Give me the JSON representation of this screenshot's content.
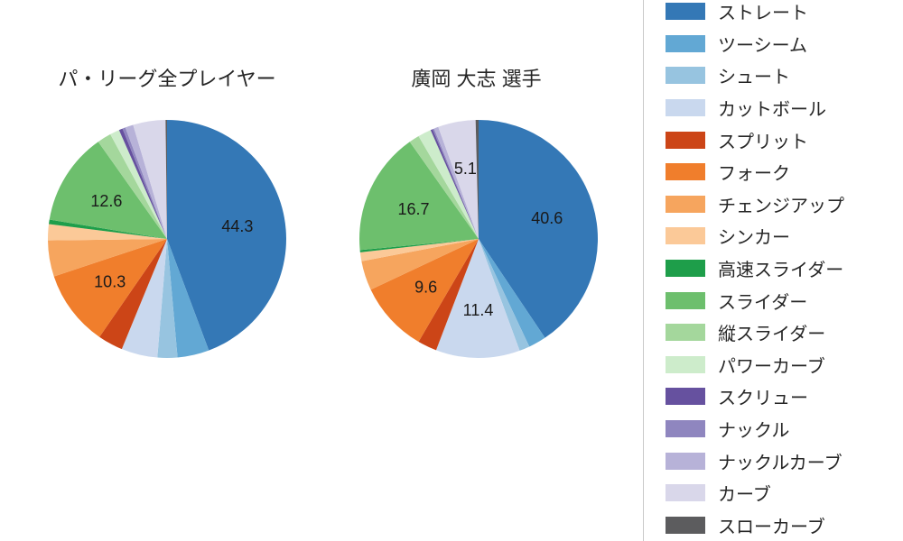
{
  "page": {
    "background": "#ffffff",
    "text_color": "#262626"
  },
  "titles": {
    "left": "パ・リーグ全プレイヤー",
    "right": "廣岡 大志 選手"
  },
  "legend": {
    "position": "right",
    "items": [
      {
        "label": "ストレート",
        "color": "#3478b6"
      },
      {
        "label": "ツーシーム",
        "color": "#62a8d4"
      },
      {
        "label": "シュート",
        "color": "#97c4e0"
      },
      {
        "label": "カットボール",
        "color": "#c9d8ee"
      },
      {
        "label": "スプリット",
        "color": "#cc4517"
      },
      {
        "label": "フォーク",
        "color": "#f07e2c"
      },
      {
        "label": "チェンジアップ",
        "color": "#f6a55e"
      },
      {
        "label": "シンカー",
        "color": "#fbc998"
      },
      {
        "label": "高速スライダー",
        "color": "#1e9e4a"
      },
      {
        "label": "スライダー",
        "color": "#6dbf6d"
      },
      {
        "label": "縦スライダー",
        "color": "#a4d79c"
      },
      {
        "label": "パワーカーブ",
        "color": "#cdeccb"
      },
      {
        "label": "スクリュー",
        "color": "#66519f"
      },
      {
        "label": "ナックル",
        "color": "#8f86bf"
      },
      {
        "label": "ナックルカーブ",
        "color": "#b7b2d8"
      },
      {
        "label": "カーブ",
        "color": "#d9d7ea"
      },
      {
        "label": "スローカーブ",
        "color": "#5c5c5e"
      }
    ]
  },
  "chart_data": [
    {
      "type": "pie",
      "id": "league",
      "title": "パ・リーグ全プレイヤー",
      "start_angle_deg": 90,
      "direction": "clockwise",
      "unit": "percent",
      "label_min_pct": 5,
      "categories": [
        "ストレート",
        "ツーシーム",
        "シュート",
        "カットボール",
        "スプリット",
        "フォーク",
        "チェンジアップ",
        "シンカー",
        "高速スライダー",
        "スライダー",
        "縦スライダー",
        "パワーカーブ",
        "スクリュー",
        "ナックル",
        "ナックルカーブ",
        "カーブ",
        "スローカーブ"
      ],
      "values": [
        44.3,
        4.3,
        2.7,
        4.9,
        3.4,
        10.3,
        4.9,
        2.2,
        0.6,
        12.6,
        1.9,
        1.3,
        0.5,
        0.4,
        1.1,
        4.4,
        0.2
      ],
      "visible_value_labels": {
        "ストレート": 44.3,
        "フォーク": 10.3,
        "スライダー": 12.6
      }
    },
    {
      "type": "pie",
      "id": "player",
      "title": "廣岡 大志 選手",
      "start_angle_deg": 90,
      "direction": "clockwise",
      "unit": "percent",
      "label_min_pct": 5,
      "categories": [
        "ストレート",
        "ツーシーム",
        "シュート",
        "カットボール",
        "スプリット",
        "フォーク",
        "チェンジアップ",
        "シンカー",
        "高速スライダー",
        "スライダー",
        "縦スライダー",
        "パワーカーブ",
        "スクリュー",
        "ナックル",
        "ナックルカーブ",
        "カーブ",
        "スローカーブ"
      ],
      "values": [
        40.6,
        2.4,
        1.4,
        11.4,
        2.6,
        9.6,
        4.0,
        1.2,
        0.3,
        16.7,
        1.4,
        1.8,
        0.3,
        0.2,
        0.6,
        5.1,
        0.4
      ],
      "visible_value_labels": {
        "ストレート": 40.6,
        "カットボール": 11.4,
        "フォーク": 9.6,
        "スライダー": 16.7,
        "カーブ": 5.1
      }
    }
  ]
}
